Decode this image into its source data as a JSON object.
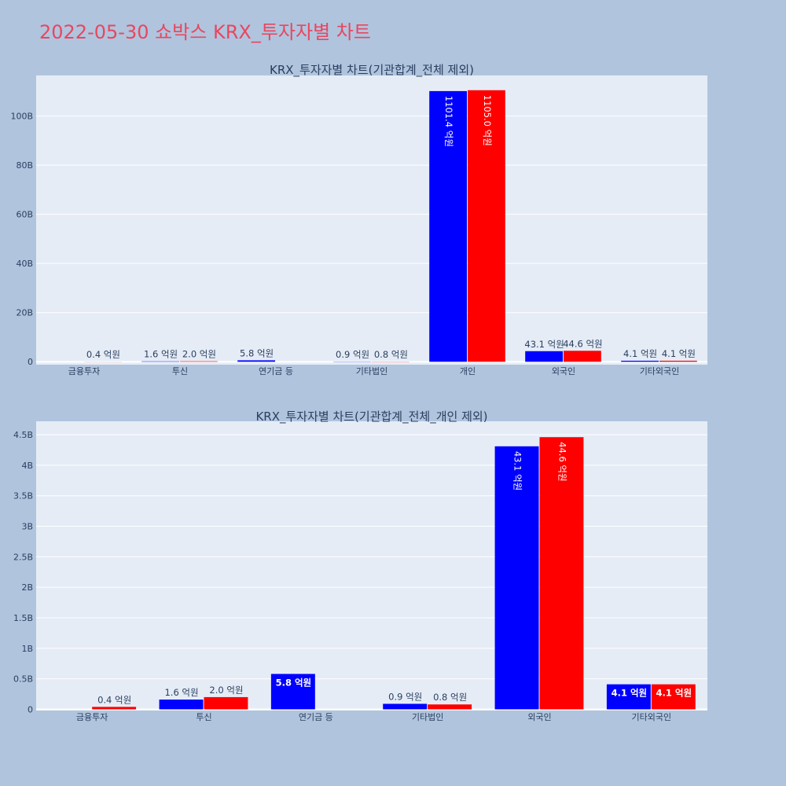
{
  "page": {
    "title": "2022-05-30 쇼박스 KRX_투자자별 차트",
    "title_color": "#e8475f",
    "background": "#b0c4de",
    "plot_background": "#e5ecf6"
  },
  "chart_data": [
    {
      "type": "bar",
      "title": "KRX_투자자별 차트(기관합계_전체 제외)",
      "categories": [
        "금융투자",
        "투신",
        "연기금 등",
        "기타법인",
        "개인",
        "외국인",
        "기타외국인"
      ],
      "series": [
        {
          "color": "#0000ff",
          "values": [
            0,
            0.16,
            0.58,
            0.09,
            110.14,
            4.31,
            0.41
          ],
          "labels": [
            "",
            "1.6 억원",
            "5.8 억원",
            "0.9 억원",
            "1101.4 억원",
            "43.1 억원",
            "4.1 억원"
          ]
        },
        {
          "color": "#ff0000",
          "values": [
            0.04,
            0.2,
            0,
            0.08,
            110.5,
            4.46,
            0.41
          ],
          "labels": [
            "0.4 억원",
            "2.0 억원",
            "",
            "0.8 억원",
            "1105.0 억원",
            "44.6 억원",
            "4.1 억원"
          ]
        }
      ],
      "ylim": [
        -1.2,
        116.5
      ],
      "yticks": [
        0,
        20,
        40,
        60,
        80,
        100
      ],
      "ytick_labels": [
        "0",
        "20B",
        "40B",
        "60B",
        "80B",
        "100B"
      ],
      "grid": true
    },
    {
      "type": "bar",
      "title": "KRX_투자자별 차트(기관합계_전체_개인 제외)",
      "categories": [
        "금융투자",
        "투신",
        "연기금 등",
        "기타법인",
        "외국인",
        "기타외국인"
      ],
      "series": [
        {
          "color": "#0000ff",
          "values": [
            0,
            0.16,
            0.58,
            0.09,
            4.31,
            0.41
          ],
          "labels": [
            "",
            "1.6 억원",
            "5.8 억원",
            "0.9 억원",
            "43.1 억원",
            "4.1 억원"
          ]
        },
        {
          "color": "#ff0000",
          "values": [
            0.04,
            0.2,
            0,
            0.08,
            4.46,
            0.41
          ],
          "labels": [
            "0.4 억원",
            "2.0 억원",
            "",
            "0.8 억원",
            "44.6 억원",
            "4.1 억원"
          ]
        }
      ],
      "ylim": [
        -0.02,
        4.72
      ],
      "yticks": [
        0,
        0.5,
        1,
        1.5,
        2,
        2.5,
        3,
        3.5,
        4,
        4.5
      ],
      "ytick_labels": [
        "0",
        "0.5B",
        "1B",
        "1.5B",
        "2B",
        "2.5B",
        "3B",
        "3.5B",
        "4B",
        "4.5B"
      ],
      "grid": true
    }
  ]
}
